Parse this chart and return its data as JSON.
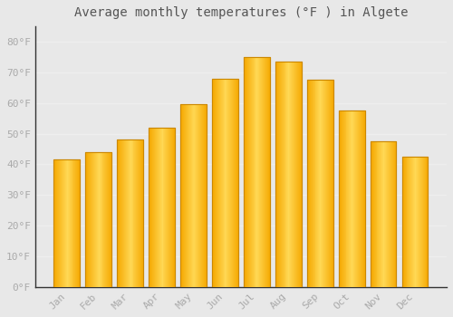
{
  "title": "Average monthly temperatures (°F ) in Algete",
  "months": [
    "Jan",
    "Feb",
    "Mar",
    "Apr",
    "May",
    "Jun",
    "Jul",
    "Aug",
    "Sep",
    "Oct",
    "Nov",
    "Dec"
  ],
  "values": [
    41.5,
    44.0,
    48.0,
    52.0,
    59.5,
    68.0,
    75.0,
    73.5,
    67.5,
    57.5,
    47.5,
    42.5
  ],
  "bar_color_center": "#FFD84D",
  "bar_color_edge": "#F5A800",
  "bar_outline_color": "#CC8800",
  "background_color": "#E8E8E8",
  "plot_bg_color": "#FFFFFF",
  "ylim": [
    0,
    85
  ],
  "yticks": [
    0,
    10,
    20,
    30,
    40,
    50,
    60,
    70,
    80
  ],
  "ytick_labels": [
    "0°F",
    "10°F",
    "20°F",
    "30°F",
    "40°F",
    "50°F",
    "60°F",
    "70°F",
    "80°F"
  ],
  "grid_color": "#EEEEEE",
  "title_fontsize": 10,
  "tick_fontsize": 8,
  "tick_color": "#AAAAAA",
  "font_family": "monospace",
  "bar_width": 0.82
}
